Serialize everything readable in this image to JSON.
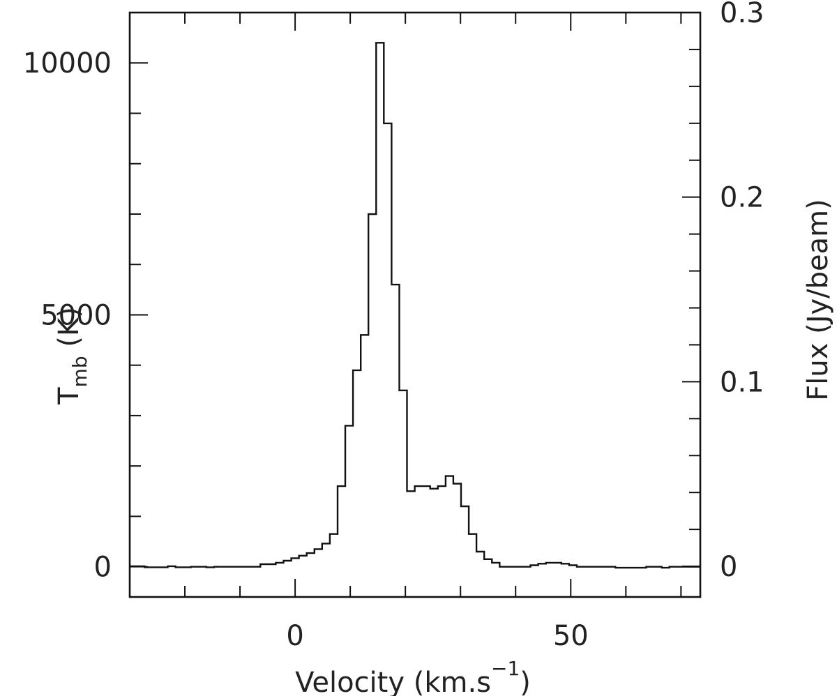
{
  "chart_data": {
    "type": "line",
    "style": "step",
    "title": "",
    "xlabel": {
      "text": "Velocity (km.s",
      "sup": "−1",
      "close": ")"
    },
    "ylabel_left": {
      "main": "T",
      "sub": "mb",
      "rest": " (K)"
    },
    "ylabel_right": "Flux (Jy/beam)",
    "x_ticks": [
      0,
      50
    ],
    "x_tick_labels": [
      "0",
      "50"
    ],
    "y_left_ticks": [
      0,
      5000,
      10000
    ],
    "y_left_tick_labels": [
      "0",
      "5000",
      "10000"
    ],
    "y_right_ticks": [
      0,
      0.1,
      0.2,
      0.3
    ],
    "y_right_tick_labels": [
      "0",
      "0.1",
      "0.2",
      "0.3"
    ],
    "xlim": [
      -30,
      73.5
    ],
    "ylim_left": [
      -600,
      11000
    ],
    "ylim_right": [
      -0.0166,
      0.3
    ],
    "grid": false,
    "series": [
      {
        "x": [
          -29.4,
          -28,
          -26.6,
          -25.2,
          -23.8,
          -22.4,
          -21,
          -19.6,
          -18.2,
          -16.8,
          -15.4,
          -14,
          -12.6,
          -11.2,
          -9.8,
          -8.4,
          -7,
          -5.6,
          -4.2,
          -2.8,
          -1.4,
          0,
          1.4,
          2.8,
          4.2,
          5.6,
          7,
          8.4,
          9.8,
          11.2,
          12.6,
          14,
          15.4,
          16.8,
          18.2,
          19.6,
          21,
          22.4,
          23.8,
          25.2,
          26.6,
          28,
          29.4,
          30.8,
          32.2,
          33.6,
          35,
          36.4,
          37.8,
          39.2,
          40.6,
          42,
          43.4,
          44.8,
          46.2,
          47.6,
          49,
          50.4,
          51.8,
          53.2,
          54.6,
          56,
          57.4,
          58.8,
          60.2,
          61.6,
          63,
          64.4,
          65.8,
          67.2,
          68.6,
          70,
          71.4,
          72.8
        ],
        "values": [
          10,
          10,
          -10,
          -10,
          -10,
          10,
          -10,
          -10,
          0,
          0,
          -10,
          0,
          0,
          0,
          0,
          0,
          0,
          50,
          50,
          80,
          120,
          170,
          220,
          270,
          350,
          460,
          650,
          1600,
          2800,
          3900,
          4600,
          7000,
          10400,
          8800,
          5600,
          3500,
          1500,
          1600,
          1600,
          1550,
          1600,
          1800,
          1650,
          1200,
          650,
          300,
          150,
          80,
          0,
          0,
          0,
          0,
          30,
          60,
          80,
          80,
          60,
          30,
          0,
          0,
          0,
          0,
          0,
          -20,
          -20,
          -20,
          -20,
          0,
          0,
          -20,
          0,
          0,
          0,
          0
        ]
      }
    ]
  }
}
